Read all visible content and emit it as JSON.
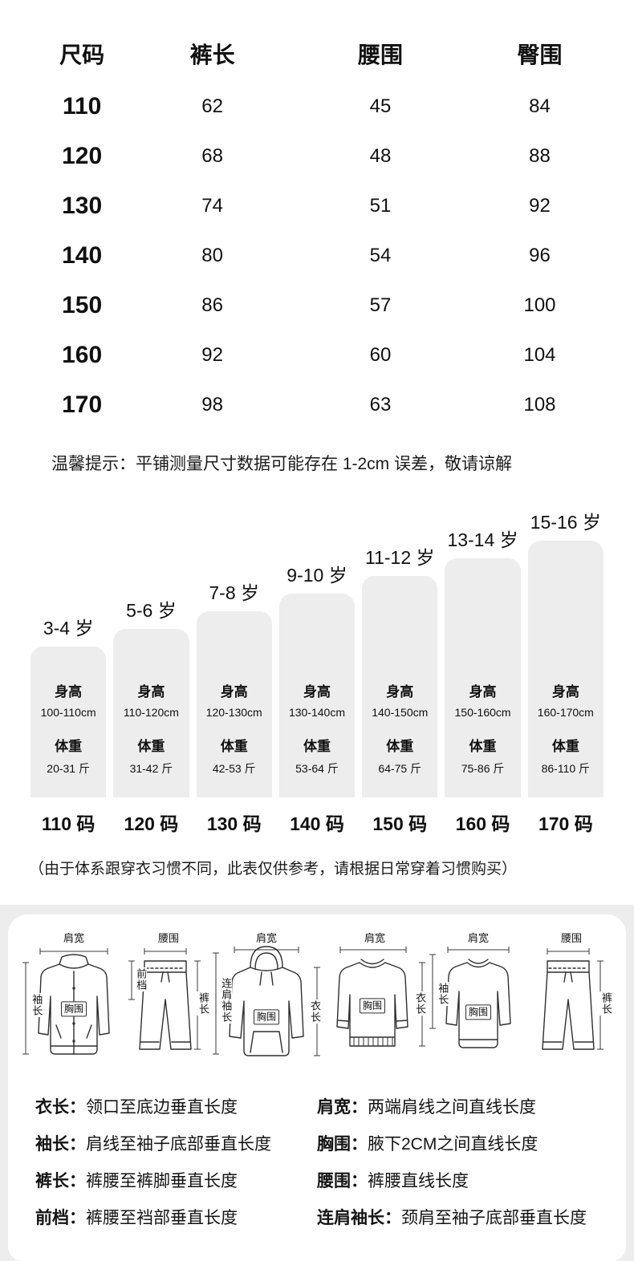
{
  "size_table": {
    "headers": [
      "尺码",
      "裤长",
      "腰围",
      "臀围"
    ],
    "rows": [
      [
        "110",
        "62",
        "45",
        "84"
      ],
      [
        "120",
        "68",
        "48",
        "88"
      ],
      [
        "130",
        "74",
        "51",
        "92"
      ],
      [
        "140",
        "80",
        "54",
        "96"
      ],
      [
        "150",
        "86",
        "57",
        "100"
      ],
      [
        "160",
        "92",
        "60",
        "104"
      ],
      [
        "170",
        "98",
        "63",
        "108"
      ]
    ]
  },
  "tip": "温馨提示：平铺测量尺寸数据可能存在 1-2cm 误差，敬请谅解",
  "chart_data": {
    "type": "bar",
    "height_label": "身高",
    "weight_label": "体重",
    "bars": [
      {
        "age": "3-4 岁",
        "height_range": "100-110cm",
        "weight_range": "20-31 斤",
        "size": "110 码"
      },
      {
        "age": "5-6 岁",
        "height_range": "110-120cm",
        "weight_range": "31-42 斤",
        "size": "120 码"
      },
      {
        "age": "7-8 岁",
        "height_range": "120-130cm",
        "weight_range": "42-53 斤",
        "size": "130 码"
      },
      {
        "age": "9-10 岁",
        "height_range": "130-140cm",
        "weight_range": "53-64 斤",
        "size": "140 码"
      },
      {
        "age": "11-12 岁",
        "height_range": "140-150cm",
        "weight_range": "64-75 斤",
        "size": "150 码"
      },
      {
        "age": "13-14 岁",
        "height_range": "150-160cm",
        "weight_range": "75-86 斤",
        "size": "160 码"
      },
      {
        "age": "15-16 岁",
        "height_range": "160-170cm",
        "weight_range": "86-110 斤",
        "size": "170 码"
      }
    ]
  },
  "note": "（由于体系跟穿衣习惯不同，此表仅供参考，请根据日常穿着习惯购买）",
  "diagrams": {
    "jacket": {
      "top": "肩宽",
      "left": "袖长",
      "chest": "胸围"
    },
    "pants_a": {
      "top": "腰围",
      "left": "前档",
      "right": "裤长"
    },
    "hoodie": {
      "top": "肩宽",
      "left": "连肩袖长",
      "chest": "胸围",
      "right": "衣长"
    },
    "sweater": {
      "top": "肩宽",
      "chest": "胸围",
      "right": "衣长"
    },
    "sweatshirt": {
      "top": "肩宽",
      "left": "袖长",
      "chest": "胸围"
    },
    "pants_b": {
      "top": "腰围",
      "right": "裤长"
    }
  },
  "guide": {
    "left": [
      {
        "term": "衣长：",
        "desc": "领口至底边垂直长度"
      },
      {
        "term": "袖长：",
        "desc": "肩线至袖子底部垂直长度"
      },
      {
        "term": "裤长：",
        "desc": "裤腰至裤脚垂直长度"
      },
      {
        "term": "前档：",
        "desc": "裤腰至裆部垂直长度"
      }
    ],
    "right": [
      {
        "term": "肩宽：",
        "desc": "两端肩线之间直线长度"
      },
      {
        "term": "胸围：",
        "desc": "腋下2CM之间直线长度"
      },
      {
        "term": "腰围：",
        "desc": "裤腰直线长度"
      },
      {
        "term": "连肩袖长：",
        "desc": "颈肩至袖子底部垂直长度"
      }
    ]
  }
}
